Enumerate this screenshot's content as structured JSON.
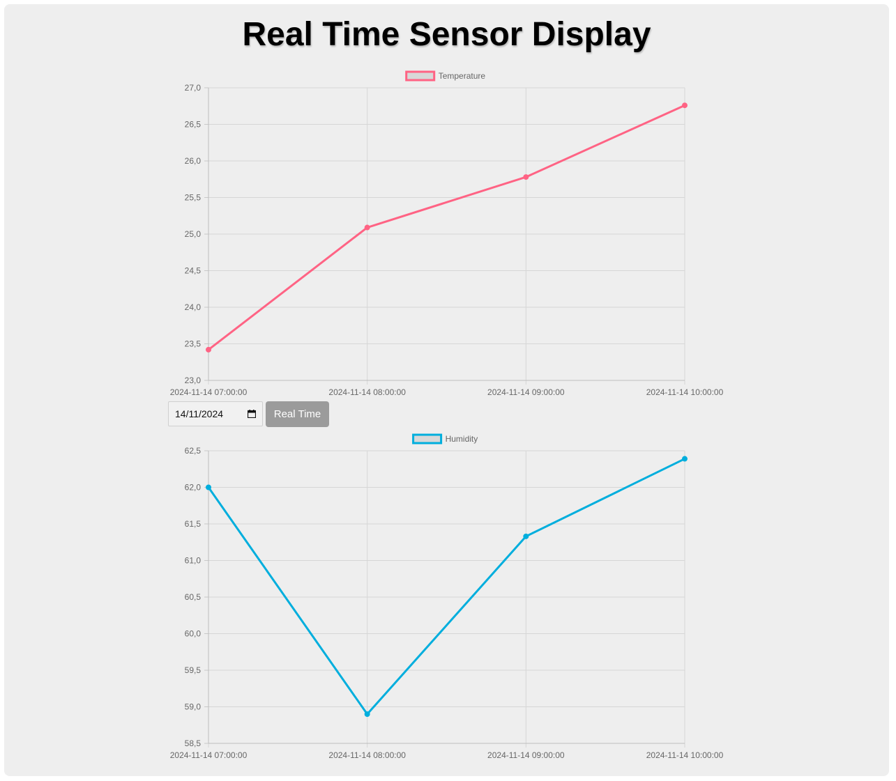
{
  "page": {
    "title": "Real Time Sensor Display"
  },
  "controls": {
    "date_value": "14/11/2024",
    "button_label": "Real Time"
  },
  "chart_data": [
    {
      "type": "line",
      "x": [
        "2024-11-14 07:00:00",
        "2024-11-14 08:00:00",
        "2024-11-14 09:00:00",
        "2024-11-14 10:00:00"
      ],
      "series": [
        {
          "name": "Temperature",
          "values": [
            23.42,
            25.09,
            25.78,
            26.76
          ],
          "color": "#ff6384"
        }
      ],
      "ylim": [
        23.0,
        27.0
      ],
      "yticks": [
        "27,0",
        "26,5",
        "26,0",
        "25,5",
        "25,0",
        "24,5",
        "24,0",
        "23,5",
        "23,0"
      ],
      "grid": true,
      "legend": "top"
    },
    {
      "type": "line",
      "x": [
        "2024-11-14 07:00:00",
        "2024-11-14 08:00:00",
        "2024-11-14 09:00:00",
        "2024-11-14 10:00:00"
      ],
      "series": [
        {
          "name": "Humidity",
          "values": [
            62.0,
            58.9,
            61.33,
            62.39
          ],
          "color": "#00aedd"
        }
      ],
      "ylim": [
        58.5,
        62.5
      ],
      "yticks": [
        "62,5",
        "62,0",
        "61,5",
        "61,0",
        "60,5",
        "60,0",
        "59,5",
        "59,0",
        "58,5"
      ],
      "grid": true,
      "legend": "top"
    }
  ]
}
